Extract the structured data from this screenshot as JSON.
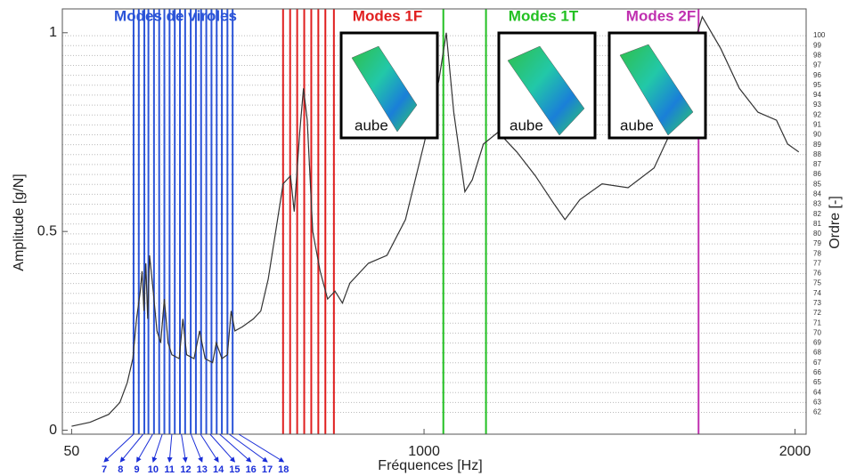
{
  "chart_data": {
    "type": "line",
    "x_label": "Fréquences [Hz]",
    "y_label": "Amplitude [g/N]",
    "y2_label": "Ordre [-]",
    "xlim": [
      25,
      2030
    ],
    "xticks": [
      50,
      1000,
      2000
    ],
    "ylim": [
      -0.01,
      1.06
    ],
    "yticks": [
      0,
      0.5,
      1
    ],
    "y2lim": [
      59.8,
      102.7
    ],
    "y2ticks": [
      62,
      63,
      64,
      65,
      66,
      67,
      68,
      69,
      70,
      71,
      72,
      73,
      74,
      75,
      76,
      77,
      78,
      79,
      80,
      81,
      82,
      83,
      84,
      85,
      86,
      87,
      88,
      89,
      90,
      91,
      92,
      93,
      94,
      95,
      96,
      97,
      98,
      99,
      100
    ],
    "y2grid": true,
    "x": [
      50,
      100,
      150,
      180,
      200,
      215,
      225,
      235,
      240,
      245,
      250,
      255,
      260,
      270,
      280,
      290,
      300,
      310,
      320,
      340,
      350,
      360,
      380,
      395,
      410,
      430,
      440,
      455,
      470,
      480,
      490,
      510,
      540,
      560,
      580,
      600,
      620,
      640,
      650,
      665,
      675,
      685,
      700,
      720,
      740,
      760,
      780,
      800,
      850,
      900,
      950,
      1000,
      1040,
      1060,
      1080,
      1110,
      1130,
      1160,
      1200,
      1250,
      1300,
      1350,
      1380,
      1420,
      1480,
      1550,
      1620,
      1680,
      1720,
      1750,
      1800,
      1850,
      1900,
      1950,
      1980,
      2010
    ],
    "series": [
      {
        "color": "#333333",
        "values": [
          0.01,
          0.02,
          0.04,
          0.07,
          0.12,
          0.18,
          0.28,
          0.35,
          0.4,
          0.3,
          0.42,
          0.28,
          0.44,
          0.35,
          0.25,
          0.22,
          0.33,
          0.22,
          0.19,
          0.18,
          0.28,
          0.19,
          0.18,
          0.25,
          0.18,
          0.17,
          0.22,
          0.18,
          0.19,
          0.3,
          0.25,
          0.26,
          0.28,
          0.3,
          0.38,
          0.5,
          0.62,
          0.64,
          0.55,
          0.75,
          0.86,
          0.78,
          0.5,
          0.4,
          0.33,
          0.35,
          0.32,
          0.37,
          0.42,
          0.44,
          0.53,
          0.72,
          0.88,
          1.0,
          0.8,
          0.6,
          0.63,
          0.72,
          0.75,
          0.7,
          0.64,
          0.57,
          0.53,
          0.58,
          0.62,
          0.61,
          0.66,
          0.78,
          0.95,
          1.04,
          0.96,
          0.86,
          0.8,
          0.78,
          0.72,
          0.7
        ]
      }
    ],
    "mode_groups": [
      {
        "label": "Modes de viroles",
        "color": "#2b54d8",
        "frequencies": [
          217,
          231,
          246,
          257,
          272,
          286,
          300,
          314,
          328,
          342,
          356,
          371,
          385,
          399,
          413,
          427,
          441,
          455,
          470,
          484
        ]
      },
      {
        "label": "Modes 1F",
        "color": "#e01f1f",
        "frequencies": [
          620,
          639,
          658,
          677,
          696,
          715,
          734,
          757
        ]
      },
      {
        "label": "Modes 1T",
        "color": "#22c022",
        "frequencies": [
          1052,
          1167
        ]
      },
      {
        "label": "Modes 2F",
        "color": "#c030b0",
        "frequencies": [
          1740
        ]
      }
    ],
    "mode_numbers": [
      7,
      8,
      9,
      10,
      11,
      12,
      13,
      14,
      15,
      16,
      17,
      18
    ],
    "insets": [
      {
        "label": "aube"
      },
      {
        "label": "aube"
      },
      {
        "label": "aube"
      }
    ]
  }
}
